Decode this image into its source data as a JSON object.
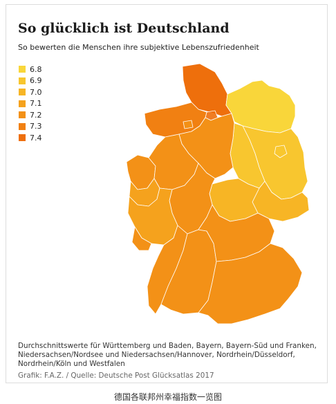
{
  "title": "So glücklich ist Deutschland",
  "subtitle": "So bewerten die Menschen ihre subjektive Lebenszufriedenheit",
  "legend": [
    {
      "label": "6.8",
      "color": "#f9d63a"
    },
    {
      "label": "6.9",
      "color": "#f8c62f"
    },
    {
      "label": "7.0",
      "color": "#f7b525"
    },
    {
      "label": "7.1",
      "color": "#f5a21d"
    },
    {
      "label": "7.2",
      "color": "#f39117"
    },
    {
      "label": "7.3",
      "color": "#f18012"
    },
    {
      "label": "7.4",
      "color": "#ee6f0c"
    }
  ],
  "regions": [
    {
      "id": "schleswig-holstein",
      "value": "7.4"
    },
    {
      "id": "hamburg",
      "value": "7.4"
    },
    {
      "id": "mecklenburg-vorpommern",
      "value": "6.8"
    },
    {
      "id": "brandenburg",
      "value": "6.9"
    },
    {
      "id": "berlin",
      "value": "6.9"
    },
    {
      "id": "sachsen-anhalt",
      "value": "6.9"
    },
    {
      "id": "sachsen",
      "value": "7.0"
    },
    {
      "id": "thueringen",
      "value": "7.0"
    },
    {
      "id": "niedersachsen-nordsee",
      "value": "7.3"
    },
    {
      "id": "niedersachsen-hannover",
      "value": "7.2"
    },
    {
      "id": "bremen",
      "value": "7.2"
    },
    {
      "id": "nordrhein-duesseldorf",
      "value": "7.2"
    },
    {
      "id": "nordrhein-koeln",
      "value": "7.1"
    },
    {
      "id": "westfalen",
      "value": "7.2"
    },
    {
      "id": "hessen",
      "value": "7.2"
    },
    {
      "id": "rheinland-pfalz",
      "value": "7.1"
    },
    {
      "id": "saarland",
      "value": "7.2"
    },
    {
      "id": "baden",
      "value": "7.2"
    },
    {
      "id": "wuerttemberg",
      "value": "7.2"
    },
    {
      "id": "franken",
      "value": "7.2"
    },
    {
      "id": "bayern-sued",
      "value": "7.2"
    }
  ],
  "note": "Durchschnittswerte für Württemberg und Baden, Bayern, Bayern-Süd und Franken, Niedersachsen/Nordsee und Niedersachsen/Hannover, Nordrhein/Düsseldorf, Nordrhein/Köln und Westfalen",
  "credit": "Grafik: F.A.Z. / Quelle: Deutsche Post Glücksatlas 2017",
  "caption": "德国各联邦州幸福指数一览图"
}
